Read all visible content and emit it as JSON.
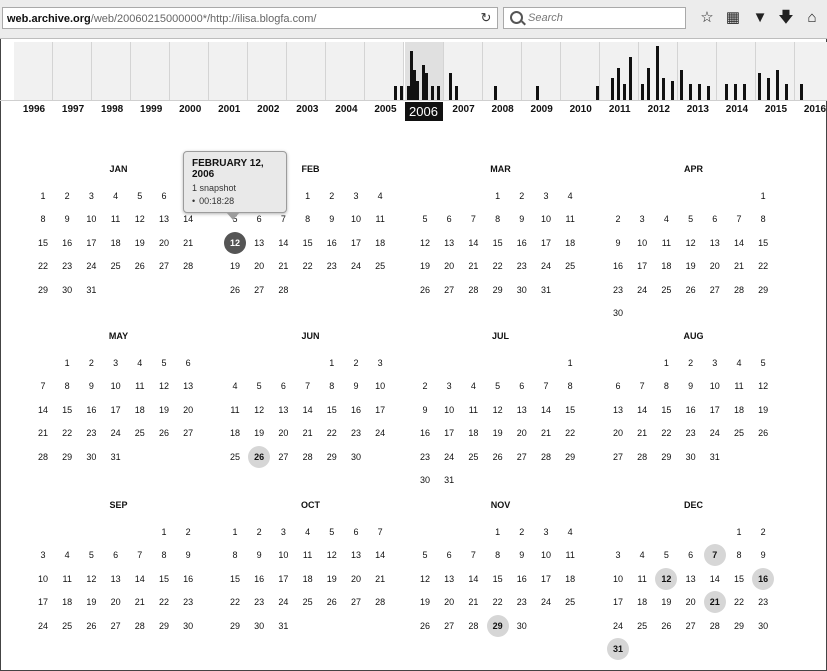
{
  "browser": {
    "url_host": "web.archive.org",
    "url_path": "/web/20060215000000*/http://ilisa.blogfa.com/",
    "search_placeholder": "Search",
    "icons": [
      "reload-icon",
      "bookmark-star-icon",
      "reading-list-icon",
      "pocket-icon",
      "download-icon",
      "home-icon"
    ]
  },
  "timeline": {
    "selected_year": "2006",
    "years": [
      "1996",
      "1997",
      "1998",
      "1999",
      "2000",
      "2001",
      "2002",
      "2003",
      "2004",
      "2005",
      "2006",
      "2007",
      "2008",
      "2009",
      "2010",
      "2011",
      "2012",
      "2013",
      "2014",
      "2015",
      "2016"
    ],
    "snapshot_bars": [
      {
        "year": "2005",
        "month": 9,
        "level": 0.25
      },
      {
        "year": "2005",
        "month": 11,
        "level": 0.25
      },
      {
        "year": "2006",
        "month": 0,
        "level": 0.25
      },
      {
        "year": "2006",
        "month": 1,
        "level": 0.9
      },
      {
        "year": "2006",
        "month": 2,
        "level": 0.55
      },
      {
        "year": "2006",
        "month": 3,
        "level": 0.35
      },
      {
        "year": "2006",
        "month": 5,
        "level": 0.65
      },
      {
        "year": "2006",
        "month": 6,
        "level": 0.5
      },
      {
        "year": "2006",
        "month": 8,
        "level": 0.25
      },
      {
        "year": "2006",
        "month": 10,
        "level": 0.25
      },
      {
        "year": "2007",
        "month": 1,
        "level": 0.5
      },
      {
        "year": "2007",
        "month": 3,
        "level": 0.25
      },
      {
        "year": "2008",
        "month": 3,
        "level": 0.25
      },
      {
        "year": "2009",
        "month": 4,
        "level": 0.25
      },
      {
        "year": "2010",
        "month": 11,
        "level": 0.25
      },
      {
        "year": "2011",
        "month": 3,
        "level": 0.4
      },
      {
        "year": "2011",
        "month": 5,
        "level": 0.6
      },
      {
        "year": "2011",
        "month": 7,
        "level": 0.3
      },
      {
        "year": "2011",
        "month": 9,
        "level": 0.8
      },
      {
        "year": "2012",
        "month": 0,
        "level": 0.3
      },
      {
        "year": "2012",
        "month": 2,
        "level": 0.6
      },
      {
        "year": "2012",
        "month": 5,
        "level": 1.0
      },
      {
        "year": "2012",
        "month": 7,
        "level": 0.4
      },
      {
        "year": "2012",
        "month": 10,
        "level": 0.35
      },
      {
        "year": "2013",
        "month": 0,
        "level": 0.55
      },
      {
        "year": "2013",
        "month": 3,
        "level": 0.3
      },
      {
        "year": "2013",
        "month": 6,
        "level": 0.3
      },
      {
        "year": "2013",
        "month": 9,
        "level": 0.25
      },
      {
        "year": "2014",
        "month": 2,
        "level": 0.3
      },
      {
        "year": "2014",
        "month": 5,
        "level": 0.3
      },
      {
        "year": "2014",
        "month": 8,
        "level": 0.3
      },
      {
        "year": "2015",
        "month": 0,
        "level": 0.5
      },
      {
        "year": "2015",
        "month": 3,
        "level": 0.4
      },
      {
        "year": "2015",
        "month": 6,
        "level": 0.55
      },
      {
        "year": "2015",
        "month": 9,
        "level": 0.3
      },
      {
        "year": "2016",
        "month": 1,
        "level": 0.3
      }
    ]
  },
  "calendar": {
    "months": [
      {
        "name": "JAN",
        "start": 0,
        "days": 31
      },
      {
        "name": "FEB",
        "start": 3,
        "days": 28
      },
      {
        "name": "MAR",
        "start": 3,
        "days": 31
      },
      {
        "name": "APR",
        "start": 6,
        "days": 30
      },
      {
        "name": "MAY",
        "start": 1,
        "days": 31
      },
      {
        "name": "JUN",
        "start": 4,
        "days": 30
      },
      {
        "name": "JUL",
        "start": 6,
        "days": 31
      },
      {
        "name": "AUG",
        "start": 2,
        "days": 31
      },
      {
        "name": "SEP",
        "start": 5,
        "days": 30
      },
      {
        "name": "OCT",
        "start": 0,
        "days": 31
      },
      {
        "name": "NOV",
        "start": 3,
        "days": 30
      },
      {
        "name": "DEC",
        "start": 5,
        "days": 31
      }
    ],
    "snapshots": [
      {
        "month": "FEB",
        "day": 12,
        "active": true
      },
      {
        "month": "JUN",
        "day": 26
      },
      {
        "month": "NOV",
        "day": 29
      },
      {
        "month": "DEC",
        "day": 7
      },
      {
        "month": "DEC",
        "day": 12
      },
      {
        "month": "DEC",
        "day": 16
      },
      {
        "month": "DEC",
        "day": 21
      },
      {
        "month": "DEC",
        "day": 31
      }
    ]
  },
  "tooltip": {
    "date": "FEBRUARY 12, 2006",
    "count": "1 snapshot",
    "time": "00:18:28"
  }
}
